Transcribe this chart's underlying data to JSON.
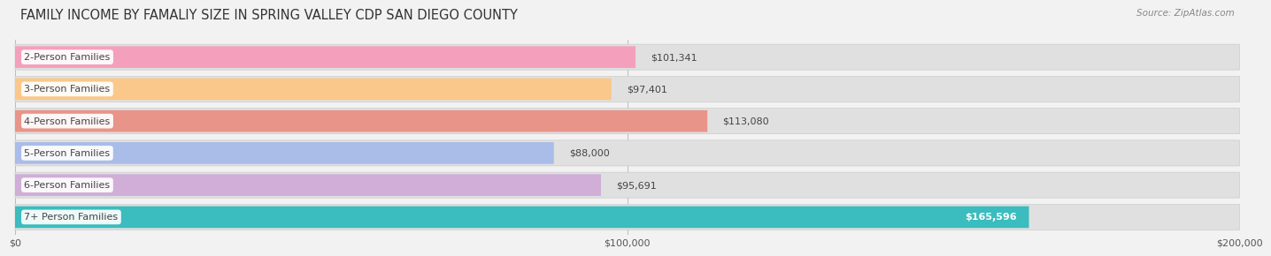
{
  "title": "FAMILY INCOME BY FAMALIY SIZE IN SPRING VALLEY CDP SAN DIEGO COUNTY",
  "source": "Source: ZipAtlas.com",
  "categories": [
    "2-Person Families",
    "3-Person Families",
    "4-Person Families",
    "5-Person Families",
    "6-Person Families",
    "7+ Person Families"
  ],
  "values": [
    101341,
    97401,
    113080,
    88000,
    95691,
    165596
  ],
  "bar_colors": [
    "#f4a0bc",
    "#f9c88a",
    "#e89488",
    "#aabce8",
    "#d0aed8",
    "#3bbcbe"
  ],
  "value_labels": [
    "$101,341",
    "$97,401",
    "$113,080",
    "$88,000",
    "$95,691",
    "$165,596"
  ],
  "value_inside": [
    false,
    false,
    false,
    false,
    false,
    true
  ],
  "xlim": [
    0,
    200000
  ],
  "xticks": [
    0,
    100000,
    200000
  ],
  "xticklabels": [
    "$0",
    "$100,000",
    "$200,000"
  ],
  "background_color": "#f2f2f2",
  "bar_bg_color": "#e0e0e0",
  "title_fontsize": 10.5,
  "label_fontsize": 8,
  "value_fontsize": 8,
  "tick_fontsize": 8,
  "source_fontsize": 7.5
}
